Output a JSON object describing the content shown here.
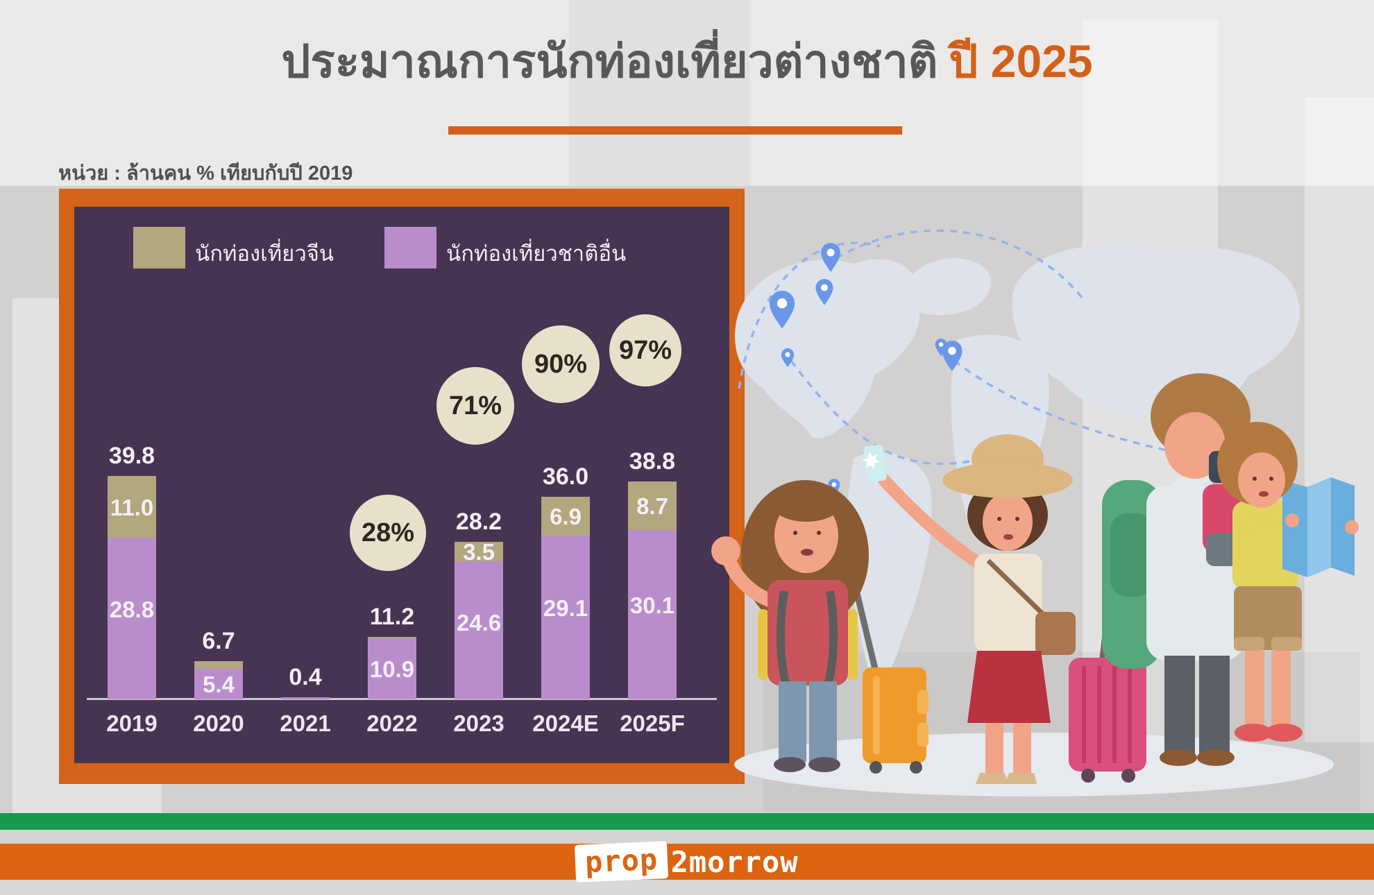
{
  "title": {
    "prefix": "ประมาณการนักท่องเที่ยวต่างชาติ",
    "year": "ปี 2025"
  },
  "unit_note": "หน่วย : ล้านคน % เทียบกับปี 2019",
  "legend": [
    {
      "label": "นักท่องเที่ยวจีน",
      "color": "#b2a77d"
    },
    {
      "label": "นักท่องเที่ยวชาติอื่น",
      "color": "#b98dcb"
    }
  ],
  "chart_data": {
    "type": "bar",
    "stacked": true,
    "title": "ประมาณการนักท่องเที่ยวต่างชาติ ปี 2025",
    "ylabel": "ล้านคน",
    "ylim": [
      0,
      45
    ],
    "grid": false,
    "legend_position": "top",
    "categories": [
      "2019",
      "2020",
      "2021",
      "2022",
      "2023",
      "2024E",
      "2025F"
    ],
    "series": [
      {
        "name": "นักท่องเที่ยวชาติอื่น",
        "color": "#b98dcb",
        "values": [
          28.8,
          5.4,
          0.4,
          10.9,
          24.6,
          29.1,
          30.1
        ],
        "labels": [
          "28.8",
          "5.4",
          null,
          "10.9",
          "24.6",
          "29.1",
          "30.1"
        ]
      },
      {
        "name": "นักท่องเที่ยวจีน",
        "color": "#b2a77d",
        "values": [
          11.0,
          1.3,
          0.0,
          0.3,
          3.5,
          6.9,
          8.7
        ],
        "labels": [
          "11.0",
          null,
          null,
          null,
          "3.5",
          "6.9",
          "8.7"
        ]
      }
    ],
    "totals": [
      39.8,
      6.7,
      0.4,
      11.2,
      28.2,
      36.0,
      38.8
    ],
    "totals_labels": [
      "39.8",
      "6.7",
      "0.4",
      "11.2",
      "28.2",
      "36.0",
      "38.8"
    ],
    "pct_badges": [
      {
        "category": "2022",
        "label": "28%"
      },
      {
        "category": "2023",
        "label": "71%"
      },
      {
        "category": "2024E",
        "label": "90%"
      },
      {
        "category": "2025F",
        "label": "97%"
      }
    ]
  },
  "footer": {
    "logo_prop": "prop",
    "logo_2morrow": "2morrow"
  },
  "colors": {
    "accent_orange": "#d2601b",
    "frame_orange": "#d3641a",
    "panel_purple": "#473452",
    "bar_purple": "#b98dcb",
    "bar_beige": "#b2a77d",
    "badge_cream": "#e7e1cb",
    "stripe_green": "#169a4b",
    "stripe_orange": "#dc6410",
    "title_gray": "#57585b",
    "map_blue": "#dde2eb",
    "pin_blue": "#6b97e9"
  }
}
